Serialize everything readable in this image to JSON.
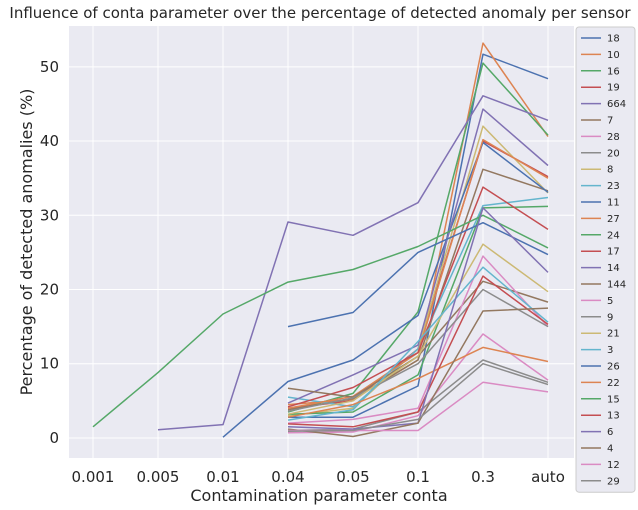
{
  "chart_data": {
    "type": "line",
    "title": "Influence of conta parameter over the percentage of detected anomaly per sensor",
    "xlabel": "Contamination parameter conta",
    "ylabel": "Percentage of detected anomalies (%)",
    "categories": [
      "0.001",
      "0.005",
      "0.01",
      "0.04",
      "0.05",
      "0.1",
      "0.3",
      "auto"
    ],
    "ylim": [
      -2.7,
      55.5
    ],
    "yticks": [
      0,
      10,
      20,
      30,
      40,
      50
    ],
    "grid": true,
    "legend_position": "right",
    "series": [
      {
        "name": "18",
        "color": "#4c72b0",
        "values": [
          null,
          null,
          null,
          2.8,
          2.8,
          7.0,
          51.7,
          48.4
        ]
      },
      {
        "name": "10",
        "color": "#dd8452",
        "values": [
          null,
          null,
          null,
          4.5,
          5.2,
          10.5,
          53.2,
          40.6
        ]
      },
      {
        "name": "16",
        "color": "#55a868",
        "values": [
          null,
          null,
          null,
          3.5,
          6.0,
          17.0,
          50.5,
          40.8
        ]
      },
      {
        "name": "19",
        "color": "#c44e52",
        "values": [
          null,
          null,
          null,
          4.0,
          5.0,
          12.0,
          40.0,
          35.2
        ]
      },
      {
        "name": "664",
        "color": "#8172b3",
        "values": [
          null,
          1.1,
          1.8,
          29.1,
          27.3,
          31.7,
          46.1,
          42.8
        ]
      },
      {
        "name": "7",
        "color": "#937860",
        "values": [
          null,
          null,
          null,
          3.8,
          5.3,
          10.5,
          36.2,
          33.3
        ]
      },
      {
        "name": "28",
        "color": "#da8bc3",
        "values": [
          null,
          null,
          null,
          0.7,
          0.8,
          3.0,
          14.0,
          7.8
        ]
      },
      {
        "name": "20",
        "color": "#8c8c8c",
        "values": [
          null,
          null,
          null,
          1.0,
          1.2,
          3.5,
          10.5,
          7.5
        ]
      },
      {
        "name": "8",
        "color": "#ccb974",
        "values": [
          null,
          null,
          null,
          3.0,
          4.0,
          12.0,
          42.0,
          33.0
        ]
      },
      {
        "name": "23",
        "color": "#64b5cd",
        "values": [
          null,
          null,
          null,
          5.5,
          4.2,
          12.0,
          31.3,
          32.4
        ]
      },
      {
        "name": "11",
        "color": "#4c72b0",
        "values": [
          null,
          null,
          0.1,
          7.6,
          10.5,
          16.5,
          39.8,
          33.1
        ]
      },
      {
        "name": "27",
        "color": "#dd8452",
        "values": [
          null,
          null,
          null,
          4.0,
          5.6,
          11.5,
          40.2,
          35.0
        ]
      },
      {
        "name": "24",
        "color": "#55a868",
        "values": [
          null,
          null,
          null,
          3.2,
          3.5,
          8.5,
          31.0,
          31.2
        ]
      },
      {
        "name": "17",
        "color": "#c44e52",
        "values": [
          null,
          null,
          null,
          4.2,
          6.8,
          11.5,
          33.8,
          28.1
        ]
      },
      {
        "name": "14",
        "color": "#8172b3",
        "values": [
          null,
          null,
          null,
          4.7,
          8.5,
          12.5,
          44.3,
          36.7
        ]
      },
      {
        "name": "144",
        "color": "#937860",
        "values": [
          null,
          null,
          null,
          6.7,
          5.5,
          11.0,
          21.1,
          18.3
        ]
      },
      {
        "name": "5",
        "color": "#da8bc3",
        "values": [
          null,
          null,
          null,
          2.0,
          2.5,
          4.0,
          24.5,
          15.0
        ]
      },
      {
        "name": "9",
        "color": "#8c8c8c",
        "values": [
          null,
          null,
          null,
          3.6,
          5.4,
          10.0,
          20.0,
          15.0
        ]
      },
      {
        "name": "21",
        "color": "#ccb974",
        "values": [
          null,
          null,
          null,
          3.2,
          5.0,
          11.0,
          26.1,
          19.7
        ]
      },
      {
        "name": "3",
        "color": "#64b5cd",
        "values": [
          null,
          null,
          null,
          2.4,
          3.8,
          13.0,
          23.0,
          15.6
        ]
      },
      {
        "name": "26",
        "color": "#4c72b0",
        "values": [
          null,
          null,
          null,
          15.0,
          16.9,
          25.0,
          29.0,
          24.7
        ]
      },
      {
        "name": "22",
        "color": "#dd8452",
        "values": [
          null,
          null,
          null,
          2.8,
          4.5,
          8.0,
          12.2,
          10.3
        ]
      },
      {
        "name": "15",
        "color": "#55a868",
        "values": [
          1.5,
          8.8,
          16.7,
          21.0,
          22.7,
          25.8,
          30.0,
          25.6
        ]
      },
      {
        "name": "13",
        "color": "#c44e52",
        "values": [
          null,
          null,
          null,
          1.9,
          1.5,
          3.5,
          21.8,
          15.3
        ]
      },
      {
        "name": "6",
        "color": "#8172b3",
        "values": [
          null,
          null,
          null,
          1.5,
          1.2,
          2.0,
          31.0,
          22.3
        ]
      },
      {
        "name": "4",
        "color": "#937860",
        "values": [
          null,
          null,
          null,
          1.2,
          0.2,
          2.0,
          17.1,
          17.5
        ]
      },
      {
        "name": "12",
        "color": "#da8bc3",
        "values": [
          null,
          null,
          null,
          1.0,
          1.0,
          1.0,
          7.5,
          6.2
        ]
      },
      {
        "name": "29",
        "color": "#8c8c8c",
        "values": [
          null,
          null,
          null,
          0.9,
          1.0,
          2.5,
          10.0,
          7.2
        ]
      }
    ]
  }
}
